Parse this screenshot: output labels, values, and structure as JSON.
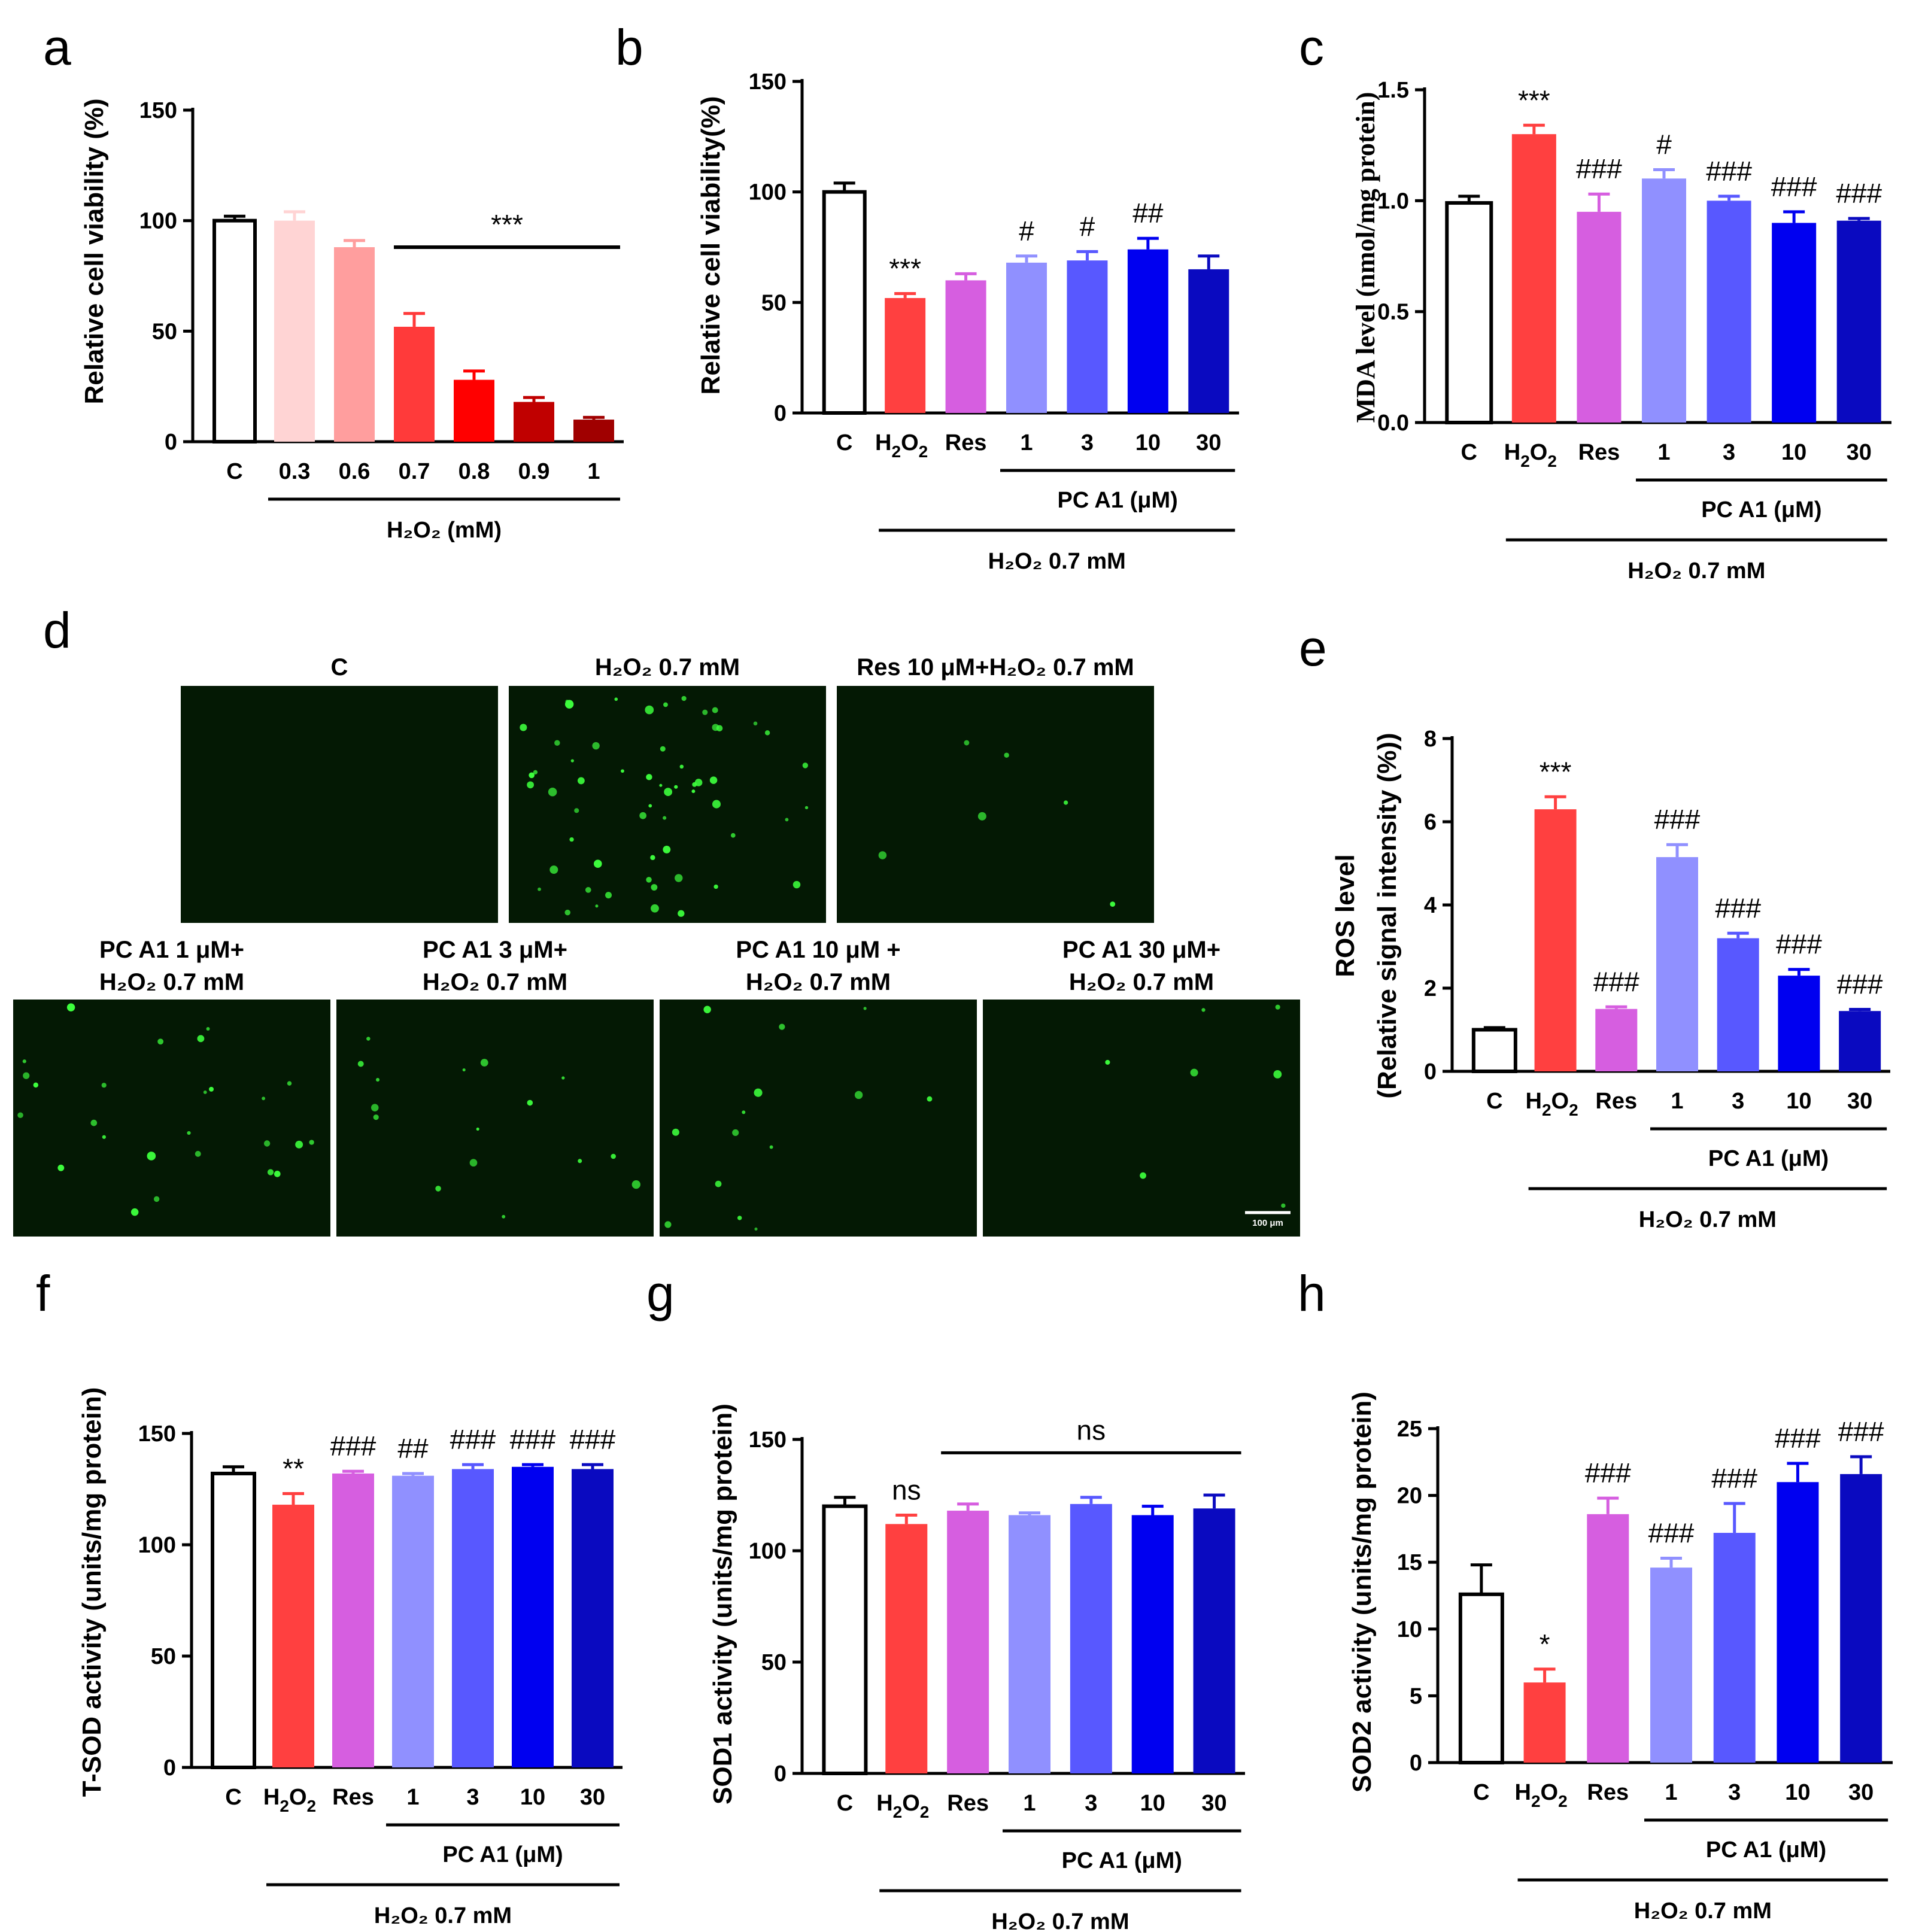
{
  "colors": {
    "C": "#ffffff",
    "H2O2": "#ff4040",
    "Res": "#d65ee0",
    "d1": "#9090ff",
    "d3": "#5858ff",
    "d10": "#0000f0",
    "d30": "#0a0ac0",
    "a03": "#ffd4d4",
    "a06": "#ff9e9e",
    "a07": "#ff3a3a",
    "a08": "#ff0000",
    "a09": "#c00000",
    "a1": "#a00000",
    "dot": "#3dff3d",
    "micro_bg": "#041904"
  },
  "group_labels": {
    "h2o2_mm": "H₂O₂ (mM)",
    "pc_a1": "PC A1 (μM)",
    "h2o2_07": "H₂O₂ 0.7 mM"
  },
  "micro": {
    "scale_label": "100 μm",
    "tiles": [
      {
        "title": "C",
        "dots": 0
      },
      {
        "title": "H₂O₂ 0.7 mM",
        "dots": 58
      },
      {
        "title": "Res 10 μM+H₂O₂ 0.7 mM",
        "dots": 6
      },
      {
        "title1": "PC A1 1 μM+",
        "title2": "H₂O₂ 0.7 mM",
        "dots": 26
      },
      {
        "title1": "PC A1 3 μM+",
        "title2": "H₂O₂ 0.7 mM",
        "dots": 16
      },
      {
        "title1": "PC A1 10 μM +",
        "title2": "H₂O₂ 0.7 mM",
        "dots": 14
      },
      {
        "title1": "PC A1 30 μM+",
        "title2": "H₂O₂ 0.7 mM",
        "dots": 7
      }
    ]
  },
  "chart_data": [
    {
      "id": "a",
      "panel": "a",
      "type": "bar",
      "ylabel": "Relative cell viability (%)",
      "ylim": [
        0,
        150
      ],
      "yticks": [
        0,
        50,
        100,
        150
      ],
      "categories": [
        "C",
        "0.3",
        "0.6",
        "0.7",
        "0.8",
        "0.9",
        "1"
      ],
      "values": [
        100,
        100,
        88,
        52,
        28,
        18,
        10
      ],
      "errors": [
        2,
        4,
        3,
        6,
        4,
        2,
        1
      ],
      "color_keys": [
        "C",
        "a03",
        "a06",
        "a07",
        "a08",
        "a09",
        "a1"
      ],
      "annotations": [
        "",
        "",
        "",
        "",
        "",
        "",
        ""
      ],
      "bracket_annotation": "***"
    },
    {
      "id": "b",
      "panel": "b",
      "type": "bar",
      "ylabel": "Relative cell viability(%)",
      "ylim": [
        0,
        150
      ],
      "yticks": [
        0,
        50,
        100,
        150
      ],
      "categories": [
        "C",
        "H2O2",
        "Res",
        "1",
        "3",
        "10",
        "30"
      ],
      "values": [
        100,
        52,
        60,
        68,
        69,
        74,
        65
      ],
      "errors": [
        4,
        2,
        3,
        3,
        4,
        5,
        6
      ],
      "color_keys": [
        "C",
        "H2O2",
        "Res",
        "d1",
        "d3",
        "d10",
        "d30"
      ],
      "annotations": [
        "",
        "***",
        "",
        "#",
        "#",
        "##",
        ""
      ]
    },
    {
      "id": "c",
      "panel": "c",
      "type": "bar",
      "ylabel": "MDA level (nmol/mg protein)",
      "ylim": [
        0,
        1.5
      ],
      "yticks": [
        "0.0",
        "0.5",
        "1.0",
        "1.5"
      ],
      "categories": [
        "C",
        "H2O2",
        "Res",
        "1",
        "3",
        "10",
        "30"
      ],
      "values": [
        0.99,
        1.3,
        0.95,
        1.1,
        1.0,
        0.9,
        0.91
      ],
      "errors": [
        0.03,
        0.04,
        0.08,
        0.04,
        0.02,
        0.05,
        0.01
      ],
      "color_keys": [
        "C",
        "H2O2",
        "Res",
        "d1",
        "d3",
        "d10",
        "d30"
      ],
      "annotations": [
        "",
        "***",
        "###",
        "#",
        "###",
        "###",
        "###"
      ]
    },
    {
      "id": "e",
      "panel": "e",
      "type": "bar",
      "ylabel": "ROS level",
      "ylabel2": "(Relative signal intensity (%))",
      "ylim": [
        0,
        8
      ],
      "yticks": [
        0,
        2,
        4,
        6,
        8
      ],
      "categories": [
        "C",
        "H2O2",
        "Res",
        "1",
        "3",
        "10",
        "30"
      ],
      "values": [
        1.0,
        6.3,
        1.5,
        5.15,
        3.2,
        2.3,
        1.45
      ],
      "errors": [
        0.05,
        0.3,
        0.05,
        0.3,
        0.12,
        0.15,
        0.04
      ],
      "color_keys": [
        "C",
        "H2O2",
        "Res",
        "d1",
        "d3",
        "d10",
        "d30"
      ],
      "annotations": [
        "",
        "***",
        "###",
        "###",
        "###",
        "###",
        "###"
      ]
    },
    {
      "id": "f",
      "panel": "f",
      "type": "bar",
      "ylabel": "T-SOD activity (units/mg protein)",
      "ylim": [
        0,
        150
      ],
      "yticks": [
        0,
        50,
        100,
        150
      ],
      "categories": [
        "C",
        "H2O2",
        "Res",
        "1",
        "3",
        "10",
        "30"
      ],
      "values": [
        132,
        118,
        132,
        131,
        134,
        135,
        134
      ],
      "errors": [
        3,
        5,
        1,
        1,
        2,
        1,
        2
      ],
      "color_keys": [
        "C",
        "H2O2",
        "Res",
        "d1",
        "d3",
        "d10",
        "d30"
      ],
      "annotations": [
        "",
        "**",
        "###",
        "##",
        "###",
        "###",
        "###"
      ]
    },
    {
      "id": "g",
      "panel": "g",
      "type": "bar",
      "ylabel": "SOD1 activity (units/mg protein)",
      "ylim": [
        0,
        150
      ],
      "yticks": [
        0,
        50,
        100,
        150
      ],
      "categories": [
        "C",
        "H2O2",
        "Res",
        "1",
        "3",
        "10",
        "30"
      ],
      "values": [
        120,
        112,
        118,
        116,
        121,
        116,
        119
      ],
      "errors": [
        4,
        4,
        3,
        1,
        3,
        4,
        6
      ],
      "color_keys": [
        "C",
        "H2O2",
        "Res",
        "d1",
        "d3",
        "d10",
        "d30"
      ],
      "annotations": [
        "",
        "ns",
        "",
        "",
        "",
        "",
        ""
      ],
      "bracket_annotation": "ns"
    },
    {
      "id": "h",
      "panel": "h",
      "type": "bar",
      "ylabel": "SOD2 activity (units/mg protein)",
      "ylim": [
        0,
        25
      ],
      "yticks": [
        0,
        5,
        10,
        15,
        20,
        25
      ],
      "categories": [
        "C",
        "H2O2",
        "Res",
        "1",
        "3",
        "10",
        "30"
      ],
      "values": [
        12.6,
        6.0,
        18.6,
        14.6,
        17.2,
        21.0,
        21.6
      ],
      "errors": [
        2.2,
        1.0,
        1.2,
        0.7,
        2.2,
        1.4,
        1.3
      ],
      "color_keys": [
        "C",
        "H2O2",
        "Res",
        "d1",
        "d3",
        "d10",
        "d30"
      ],
      "annotations": [
        "",
        "*",
        "###",
        "###",
        "###",
        "###",
        "###"
      ]
    }
  ]
}
